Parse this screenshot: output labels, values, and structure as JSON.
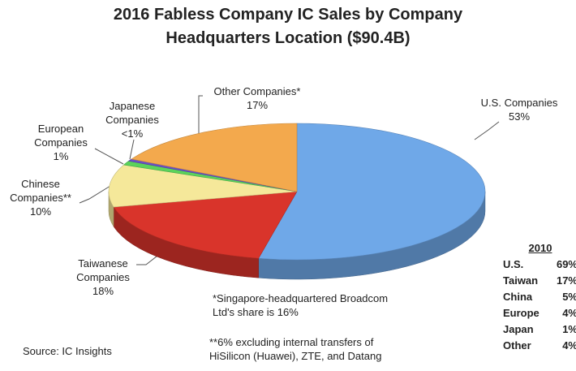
{
  "chart_data": {
    "type": "pie3d",
    "title": "2016 Fabless Company IC Sales by Company Headquarters Location ($90.4B)",
    "categories": [
      "U.S. Companies",
      "Taiwanese Companies",
      "Chinese Companies**",
      "European Companies",
      "Japanese Companies",
      "Other Companies*"
    ],
    "values": [
      53,
      18,
      10,
      1,
      0.5,
      17
    ],
    "value_labels": [
      "53%",
      "18%",
      "10%",
      "1%",
      "<1%",
      "17%"
    ],
    "colors": [
      "#6fa8e8",
      "#d9342b",
      "#f5e89a",
      "#5bd35b",
      "#6a4fc8",
      "#f3a94d"
    ],
    "notes": [
      "*Singapore-headquartered Broadcom Ltd's share is 16%",
      "**6% excluding internal transfers of HiSilicon (Huawei), ZTE, and Datang"
    ],
    "source": "Source: IC Insights",
    "inset_table": {
      "title": "2010",
      "rows": [
        [
          "U.S.",
          "69%"
        ],
        [
          "Taiwan",
          "17%"
        ],
        [
          "China",
          "5%"
        ],
        [
          "Europe",
          "4%"
        ],
        [
          "Japan",
          "1%"
        ],
        [
          "Other",
          "4%"
        ]
      ]
    }
  }
}
